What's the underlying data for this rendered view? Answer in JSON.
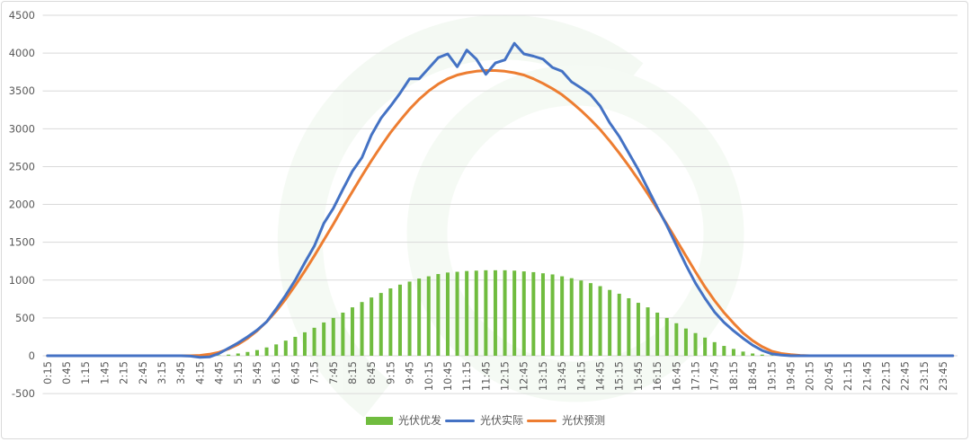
{
  "colors": {
    "generation": "#70BC3F",
    "actual": "#4472C4",
    "forecast": "#ED7D31",
    "grid": "#D9D9D9",
    "watermark": "#E8F3E6"
  },
  "chart_data": {
    "type": "bar+line",
    "title": "",
    "xlabel": "",
    "ylabel": "",
    "ylim": [
      -500,
      4500
    ],
    "y_ticks": [
      "-500",
      "0",
      "500",
      "1000",
      "1500",
      "2000",
      "2500",
      "3000",
      "3500",
      "4000",
      "4500"
    ],
    "x_interval_minutes": 15,
    "x_tick_labels": [
      "0:15",
      "0:45",
      "1:15",
      "1:45",
      "2:15",
      "2:45",
      "3:15",
      "3:45",
      "4:15",
      "4:45",
      "5:15",
      "5:45",
      "6:15",
      "6:45",
      "7:15",
      "7:45",
      "8:15",
      "8:45",
      "9:15",
      "9:45",
      "10:15",
      "10:45",
      "11:15",
      "11:45",
      "12:15",
      "12:45",
      "13:15",
      "13:45",
      "14:15",
      "14:45",
      "15:15",
      "15:45",
      "16:15",
      "16:45",
      "17:15",
      "17:45",
      "18:15",
      "18:45",
      "19:15",
      "19:45",
      "20:15",
      "20:45",
      "21:15",
      "21:45",
      "22:15",
      "22:45",
      "23:15",
      "23:45"
    ],
    "grid": true,
    "legend_position": "bottom",
    "series": [
      {
        "name": "光伏优发",
        "type": "bar",
        "values": [
          0,
          0,
          0,
          0,
          0,
          0,
          0,
          0,
          0,
          0,
          0,
          0,
          0,
          0,
          0,
          0,
          0,
          0,
          5,
          15,
          30,
          50,
          75,
          110,
          150,
          200,
          250,
          310,
          370,
          440,
          500,
          570,
          640,
          710,
          770,
          830,
          890,
          940,
          980,
          1020,
          1050,
          1080,
          1100,
          1110,
          1120,
          1125,
          1130,
          1130,
          1130,
          1125,
          1115,
          1105,
          1090,
          1075,
          1050,
          1025,
          995,
          960,
          920,
          870,
          820,
          760,
          700,
          640,
          570,
          500,
          430,
          360,
          300,
          240,
          180,
          130,
          90,
          55,
          30,
          15,
          5,
          0,
          0,
          0,
          0,
          0,
          0,
          0,
          0,
          0,
          0,
          0,
          0,
          0,
          0,
          0,
          0,
          0,
          0,
          0
        ]
      },
      {
        "name": "光伏实际",
        "type": "line",
        "values": [
          0,
          0,
          0,
          0,
          0,
          0,
          0,
          0,
          0,
          0,
          0,
          0,
          0,
          0,
          0,
          -5,
          -20,
          -15,
          30,
          100,
          170,
          250,
          340,
          450,
          620,
          800,
          1000,
          1230,
          1450,
          1750,
          1950,
          2200,
          2440,
          2620,
          2920,
          3140,
          3300,
          3470,
          3660,
          3660,
          3800,
          3940,
          3990,
          3820,
          4040,
          3920,
          3720,
          3870,
          3910,
          4130,
          3990,
          3960,
          3920,
          3810,
          3760,
          3620,
          3540,
          3450,
          3300,
          3080,
          2900,
          2680,
          2460,
          2210,
          1960,
          1720,
          1460,
          1200,
          960,
          760,
          580,
          440,
          330,
          230,
          140,
          70,
          25,
          10,
          0,
          0,
          0,
          0,
          0,
          0,
          0,
          0,
          0,
          0,
          0,
          0,
          0,
          0,
          0,
          0,
          0,
          0
        ]
      },
      {
        "name": "光伏预测",
        "type": "line",
        "values": [
          0,
          0,
          0,
          0,
          0,
          0,
          0,
          0,
          0,
          0,
          0,
          0,
          0,
          0,
          0,
          0,
          5,
          20,
          45,
          90,
          150,
          230,
          330,
          450,
          590,
          750,
          930,
          1120,
          1320,
          1530,
          1740,
          1960,
          2170,
          2380,
          2580,
          2770,
          2950,
          3110,
          3260,
          3390,
          3500,
          3590,
          3660,
          3710,
          3740,
          3760,
          3770,
          3770,
          3760,
          3740,
          3710,
          3660,
          3600,
          3530,
          3450,
          3350,
          3240,
          3120,
          2990,
          2840,
          2680,
          2510,
          2330,
          2140,
          1940,
          1740,
          1530,
          1320,
          1110,
          910,
          730,
          570,
          430,
          300,
          200,
          120,
          60,
          30,
          15,
          5,
          0,
          0,
          0,
          0,
          0,
          0,
          0,
          0,
          0,
          0,
          0,
          0,
          0,
          0,
          0,
          0
        ]
      }
    ]
  }
}
